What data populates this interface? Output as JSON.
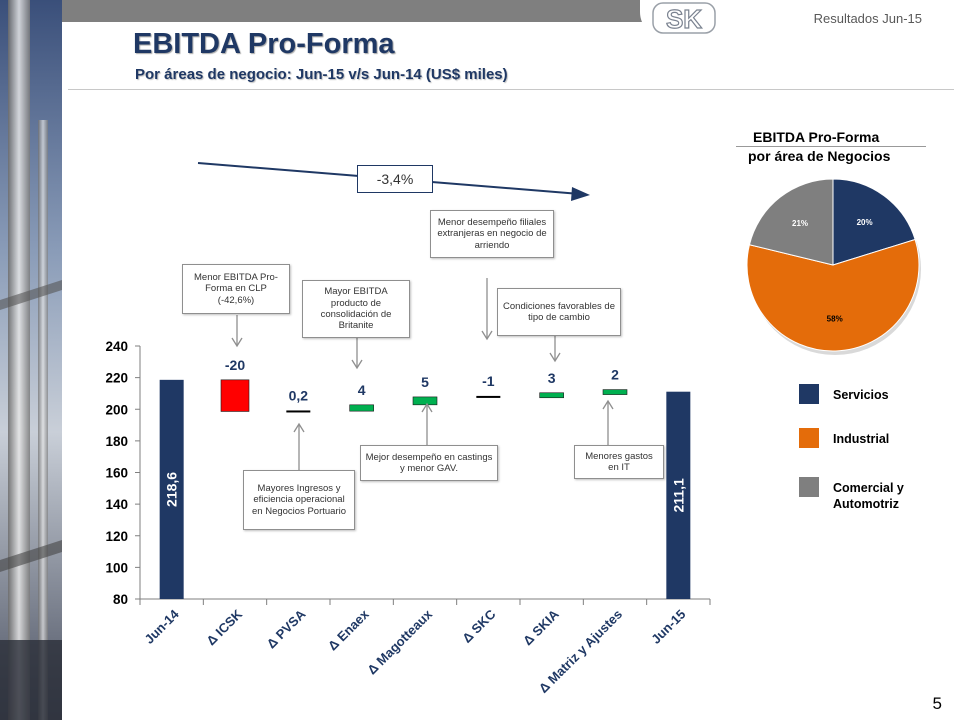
{
  "header": {
    "title": "EBITDA Pro-Forma",
    "subtitle": "Por áreas de negocio: Jun-15 v/s Jun-14 (US$ miles)",
    "page_label": "Resultados Jun-15",
    "logo_text": "SK",
    "page_number": "5"
  },
  "growth_label": "-3,4%",
  "callouts": {
    "icsk": "Menor EBITDA Pro-Forma en CLP (-42,6%)",
    "pvsa": "Mayores Ingresos y eficiencia operacional en Negocios Portuario",
    "enaex": "Mayor EBITDA producto de consolidación de Britanite",
    "magotteaux": "Mejor desempeño en castings y menor GAV.",
    "skc": "Menor desempeño filiales extranjeras en negocio de arriendo",
    "skia": "Condiciones favorables de tipo de cambio",
    "matriz": "Menores gastos en IT"
  },
  "colors": {
    "total": "#1f3864",
    "negative": "#ff0000",
    "positive": "#00b050",
    "neutral": "#000000",
    "servicios": "#1f3864",
    "industrial": "#e46c0a",
    "comercial": "#7f7f7f"
  },
  "chart_data": [
    {
      "type": "bar",
      "subtype": "waterfall",
      "categories": [
        "Jun-14",
        "Δ ICSK",
        "Δ PVSA",
        "Δ Enaex",
        "Δ Magotteaux",
        "Δ SKC",
        "Δ SKIA",
        "Δ Matriz y Ajustes",
        "Jun-15"
      ],
      "values": [
        218.6,
        -20,
        0.2,
        4,
        5,
        -1,
        3,
        2,
        211.1
      ],
      "data_labels": [
        "218,6",
        "-20",
        "0,2",
        "4",
        "5",
        "-1",
        "3",
        "2",
        "211,1"
      ],
      "y_ticks": [
        "80",
        "100",
        "120",
        "140",
        "160",
        "180",
        "200",
        "220",
        "240"
      ],
      "ylim": [
        80,
        240
      ],
      "grid": false
    },
    {
      "type": "pie",
      "title": "EBITDA Pro-Forma",
      "subtitle": "por área de Negocios",
      "labels": [
        "Servicios",
        "Industrial",
        "Comercial y Automotriz"
      ],
      "values": [
        20,
        58,
        21
      ],
      "data_labels": [
        "20%",
        "58%",
        "21%"
      ],
      "legend_placement": "right"
    }
  ]
}
